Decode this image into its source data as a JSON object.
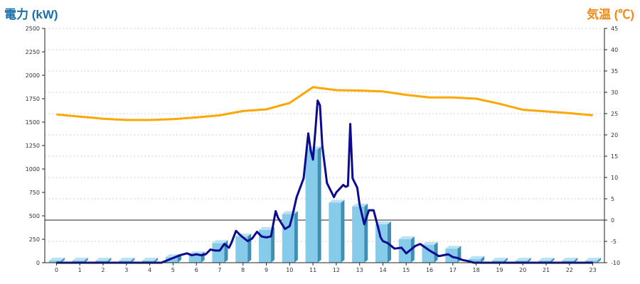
{
  "colors": {
    "left_title": "#1b6fa8",
    "right_title": "#ee8a19",
    "bar_front": "#86cbea",
    "bar_side": "#3f8fb5",
    "bar_top": "#b9e2f5",
    "power_line": "#0b0b8f",
    "temp_line": "#ffa600",
    "grid": "#cfcfcf"
  },
  "chart_data": {
    "type": "bar",
    "left_axis_title": "電力 (kW)",
    "right_axis_title": "気温 (℃)",
    "ylim_left": [
      0,
      2500
    ],
    "ylim_right": [
      -10,
      45
    ],
    "y_ticks_left": [
      "0",
      "250",
      "500",
      "750",
      "1000",
      "1250",
      "1500",
      "1750",
      "2000",
      "2250",
      "2500"
    ],
    "y_ticks_right": [
      "-10",
      "-5",
      "0",
      "5",
      "10",
      "15",
      "20",
      "25",
      "30",
      "35",
      "40",
      "45"
    ],
    "categories": [
      "0",
      "1",
      "2",
      "3",
      "4",
      "5",
      "6",
      "7",
      "8",
      "9",
      "10",
      "11",
      "12",
      "13",
      "14",
      "15",
      "16",
      "17",
      "18",
      "19",
      "20",
      "21",
      "22",
      "23"
    ],
    "series": [
      {
        "kind": "bar",
        "axis": "left",
        "values": [
          0,
          0,
          0,
          0,
          0,
          60,
          90,
          210,
          280,
          350,
          520,
          1210,
          640,
          600,
          410,
          250,
          190,
          150,
          40,
          0,
          0,
          0,
          0,
          0
        ]
      },
      {
        "kind": "line",
        "axis": "right",
        "values": [
          24.8,
          24.3,
          23.8,
          23.5,
          23.5,
          23.7,
          24.1,
          24.6,
          25.6,
          26.0,
          27.5,
          31.2,
          30.5,
          30.4,
          30.2,
          29.4,
          28.8,
          28.8,
          28.5,
          27.3,
          25.9,
          25.5,
          25.1,
          24.6
        ]
      },
      {
        "kind": "line",
        "axis": "left",
        "x": [
          0,
          4.5,
          5,
          5.3,
          5.6,
          5.8,
          6,
          6.2,
          6.4,
          6.6,
          6.8,
          7,
          7.2,
          7.4,
          7.5,
          7.7,
          7.9,
          8,
          8.2,
          8.4,
          8.6,
          8.8,
          9,
          9.2,
          9.4,
          9.5,
          9.7,
          9.8,
          10,
          10.1,
          10.3,
          10.6,
          10.8,
          10.9,
          11,
          11.1,
          11.2,
          11.3,
          11.4,
          11.6,
          11.9,
          12,
          12.3,
          12.4,
          12.5,
          12.6,
          12.7,
          12.9,
          13,
          13.2,
          13.4,
          13.6,
          13.8,
          13.9,
          14,
          14.2,
          14.5,
          14.8,
          15,
          15.4,
          15.6,
          16,
          16.4,
          16.8,
          17,
          17.2,
          17.4,
          17.6,
          17.9,
          18,
          19,
          23
        ],
        "values": [
          0,
          0,
          50,
          80,
          100,
          80,
          90,
          80,
          90,
          140,
          130,
          130,
          200,
          160,
          210,
          340,
          290,
          270,
          230,
          260,
          330,
          280,
          270,
          280,
          550,
          480,
          400,
          360,
          390,
          480,
          700,
          900,
          1380,
          1200,
          1100,
          1400,
          1730,
          1680,
          1250,
          850,
          700,
          750,
          830,
          810,
          820,
          1480,
          900,
          800,
          620,
          410,
          560,
          560,
          370,
          270,
          230,
          210,
          150,
          160,
          100,
          180,
          200,
          130,
          70,
          90,
          60,
          50,
          30,
          20,
          0,
          0,
          0,
          0
        ]
      }
    ]
  }
}
